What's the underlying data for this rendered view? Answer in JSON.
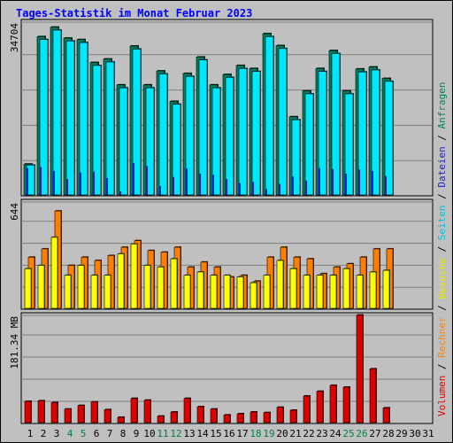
{
  "title": "Tages-Statistik im Monat Februar 2023",
  "chart_data": [
    {
      "type": "bar",
      "panel": "requests",
      "y_axis_label": "34704",
      "ylim": [
        0,
        34704
      ],
      "grid": true,
      "categories": [
        "1",
        "2",
        "3",
        "4",
        "5",
        "6",
        "7",
        "8",
        "9",
        "10",
        "11",
        "12",
        "13",
        "14",
        "15",
        "16",
        "17",
        "18",
        "19",
        "20",
        "21",
        "22",
        "23",
        "24",
        "25",
        "26",
        "27",
        "28",
        "29",
        "30",
        "31"
      ],
      "series": [
        {
          "name": "Anfragen",
          "color": "#008060",
          "values": [
            6200,
            31800,
            33700,
            31500,
            31200,
            26600,
            27300,
            22100,
            29900,
            22100,
            24900,
            18800,
            24400,
            27700,
            22100,
            24200,
            26000,
            25400,
            32400,
            30000,
            15700,
            20900,
            25400,
            29000,
            20900,
            25300,
            25700,
            23400,
            0,
            0,
            0
          ]
        },
        {
          "name": "Seiten",
          "color": "#00e8ff",
          "values": [
            6000,
            31200,
            33100,
            30900,
            30600,
            26000,
            26700,
            21500,
            29300,
            21500,
            24300,
            18200,
            23800,
            27100,
            21500,
            23600,
            25400,
            24800,
            31800,
            29400,
            15100,
            20300,
            24800,
            28400,
            20300,
            24700,
            25100,
            22800,
            0,
            0,
            0
          ]
        },
        {
          "name": "Dateien",
          "color": "#2020cc",
          "values": [
            5400,
            5600,
            4800,
            3200,
            4500,
            4700,
            3400,
            700,
            6400,
            5800,
            1800,
            3600,
            5300,
            4300,
            4000,
            3200,
            2400,
            2600,
            1200,
            2200,
            3700,
            2900,
            5400,
            5200,
            4300,
            5100,
            4800,
            3800,
            0,
            0,
            0
          ]
        }
      ]
    },
    {
      "type": "bar",
      "panel": "visits",
      "y_axis_label": "644",
      "ylim": [
        0,
        644
      ],
      "grid": true,
      "categories": [
        "1",
        "2",
        "3",
        "4",
        "5",
        "6",
        "7",
        "8",
        "9",
        "10",
        "11",
        "12",
        "13",
        "14",
        "15",
        "16",
        "17",
        "18",
        "19",
        "20",
        "21",
        "22",
        "23",
        "24",
        "25",
        "26",
        "27",
        "28",
        "29",
        "30",
        "31"
      ],
      "series": [
        {
          "name": "Besuche",
          "color": "#ffff00",
          "values": [
            240,
            260,
            430,
            200,
            260,
            200,
            200,
            330,
            390,
            260,
            250,
            300,
            200,
            220,
            200,
            200,
            190,
            155,
            200,
            290,
            240,
            200,
            200,
            200,
            240,
            200,
            220,
            230,
            0,
            0,
            0
          ]
        },
        {
          "name": "Rechner",
          "color": "#ff8000",
          "values": [
            310,
            360,
            590,
            260,
            310,
            290,
            320,
            370,
            410,
            350,
            340,
            370,
            250,
            280,
            250,
            190,
            200,
            165,
            310,
            370,
            310,
            300,
            210,
            250,
            270,
            310,
            360,
            360,
            0,
            0,
            0
          ]
        }
      ]
    },
    {
      "type": "bar",
      "panel": "volume",
      "y_axis_label": "181.34 MB",
      "ylim": [
        0,
        181.34
      ],
      "grid": true,
      "categories": [
        "1",
        "2",
        "3",
        "4",
        "5",
        "6",
        "7",
        "8",
        "9",
        "10",
        "11",
        "12",
        "13",
        "14",
        "15",
        "16",
        "17",
        "18",
        "19",
        "20",
        "21",
        "22",
        "23",
        "24",
        "25",
        "26",
        "27",
        "28",
        "29",
        "30",
        "31"
      ],
      "series": [
        {
          "name": "Volumen",
          "color": "#dd0000",
          "values": [
            36,
            37,
            34,
            23,
            29,
            35,
            22,
            9,
            41,
            38,
            11,
            18,
            41,
            27,
            23,
            13,
            15,
            18,
            17,
            26,
            21,
            45,
            53,
            63,
            60,
            182,
            91,
            25,
            0,
            0,
            0
          ]
        }
      ]
    }
  ],
  "weekend_days": [
    4,
    5,
    11,
    12,
    18,
    19,
    25,
    26
  ],
  "weekend_color": "#008040",
  "weekday_color": "#000000",
  "legend_right": [
    {
      "text": "Volumen",
      "color": "#dd0000"
    },
    {
      "text": " / ",
      "color": "#000000"
    },
    {
      "text": "Rechner",
      "color": "#ff8000"
    },
    {
      "text": " / ",
      "color": "#000000"
    },
    {
      "text": "Besuche",
      "color": "#e6e600"
    },
    {
      "text": " / ",
      "color": "#000000"
    },
    {
      "text": "Seiten",
      "color": "#00c0e0"
    },
    {
      "text": " / ",
      "color": "#000000"
    },
    {
      "text": "Dateien",
      "color": "#2020cc"
    },
    {
      "text": " / ",
      "color": "#000000"
    },
    {
      "text": "Anfragen",
      "color": "#008060"
    }
  ]
}
